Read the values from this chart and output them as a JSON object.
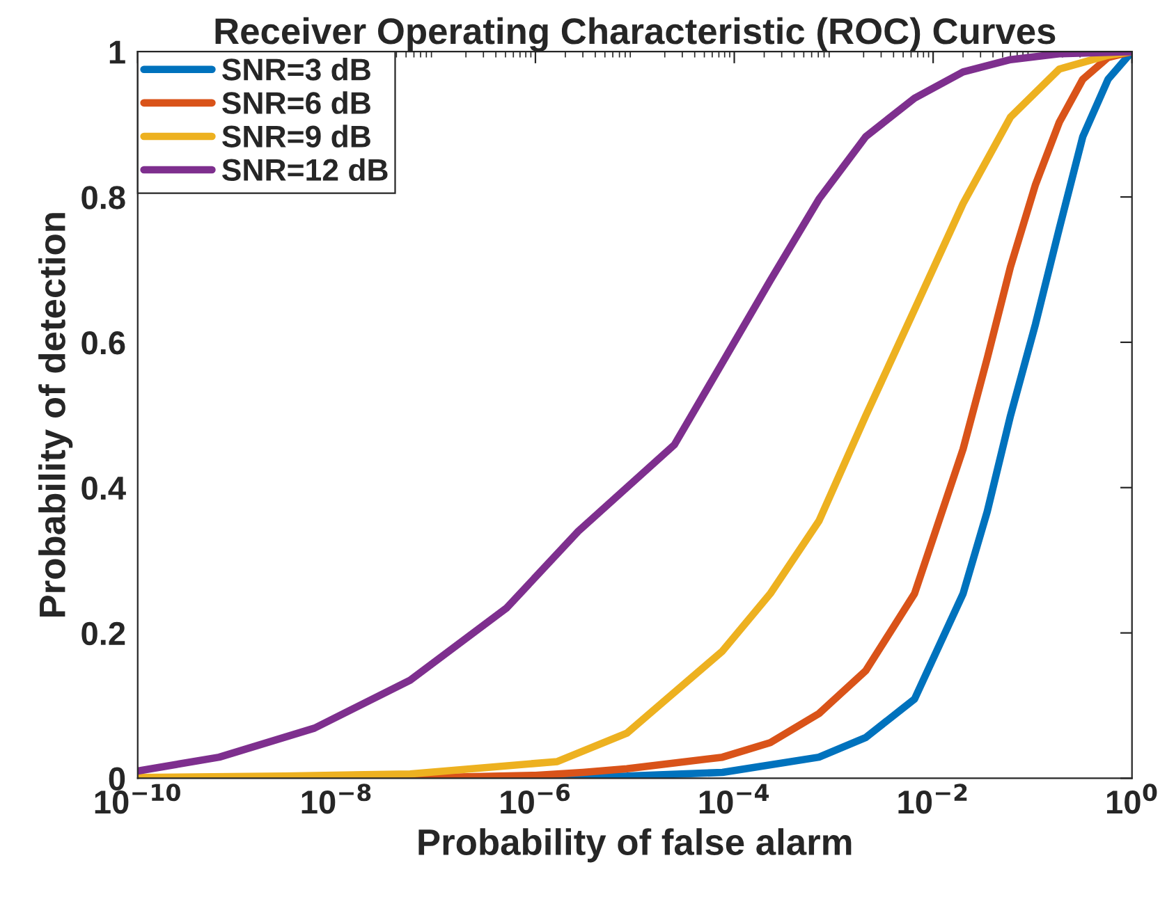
{
  "chart_data": {
    "type": "line",
    "title": "Receiver Operating Characteristic (ROC) Curves",
    "xlabel": "Probability of false alarm",
    "ylabel": "Probability of detection",
    "log": "x",
    "xlim": [
      1e-10,
      1
    ],
    "ylim": [
      0,
      1
    ],
    "xticks": [
      {
        "value": 1e-10,
        "label": "10$^{−10}$"
      },
      {
        "value": 1e-08,
        "label": "10$^{−8}$"
      },
      {
        "value": 1e-06,
        "label": "10$^{−6}$"
      },
      {
        "value": 0.0001,
        "label": "10$^{−4}$"
      },
      {
        "value": 0.01,
        "label": "10$^{−2}$"
      },
      {
        "value": 1,
        "label": "10$^{0}$"
      }
    ],
    "yticks": [
      0,
      0.2,
      0.4,
      0.6,
      0.8,
      1
    ],
    "grid": false,
    "legend": "top left",
    "marker": "none",
    "line_style": "solid",
    "series": [
      {
        "name": "SNR=3 dB",
        "color": "#0072bd",
        "x": [
          1e-10,
          1e-07,
          1e-06,
          8.3e-06,
          7.6e-05,
          0.00071,
          0.0021,
          0.0065,
          0.02,
          0.035,
          0.06,
          0.107,
          0.186,
          0.32,
          0.575,
          1
        ],
        "values": [
          0,
          0,
          null,
          0.003,
          0.008,
          0.029,
          0.056,
          0.109,
          0.254,
          0.367,
          0.499,
          0.625,
          0.757,
          0.883,
          0.962,
          1
        ]
      },
      {
        "name": "SNR=6 dB",
        "color": "#d95319",
        "x": [
          1e-10,
          1e-07,
          1e-06,
          3e-06,
          8.3e-06,
          7.6e-05,
          0.00023,
          0.00071,
          0.0021,
          0.0065,
          0.02,
          0.035,
          0.06,
          0.107,
          0.186,
          0.32,
          0.575,
          1
        ],
        "values": [
          0,
          0.001,
          0.004,
          0.008,
          0.013,
          0.029,
          0.049,
          0.089,
          0.148,
          0.254,
          0.453,
          0.578,
          0.704,
          0.817,
          0.903,
          0.962,
          0.992,
          1
        ]
      },
      {
        "name": "SNR=9 dB",
        "color": "#edb120",
        "x": [
          1e-10,
          3e-09,
          5.5e-08,
          1.66e-06,
          8.3e-06,
          7.6e-05,
          0.00023,
          0.00071,
          0.0021,
          0.0065,
          0.02,
          0.06,
          0.186,
          0.575,
          1
        ],
        "values": [
          0.001,
          0.003,
          0.006,
          0.023,
          0.062,
          0.175,
          0.254,
          0.354,
          0.499,
          0.645,
          0.791,
          0.91,
          0.976,
          0.995,
          1
        ]
      },
      {
        "name": "SNR=12 dB",
        "color": "#7e2f8e",
        "x": [
          1e-10,
          6.6e-10,
          6e-09,
          5.5e-08,
          5.1e-07,
          2.7e-06,
          2.5e-05,
          7.6e-05,
          0.00023,
          0.00071,
          0.0021,
          0.0065,
          0.02,
          0.06,
          0.186,
          1
        ],
        "values": [
          0.01,
          0.029,
          0.069,
          0.135,
          0.234,
          0.34,
          0.459,
          0.572,
          0.685,
          0.797,
          0.883,
          0.936,
          0.972,
          0.989,
          0.997,
          1
        ]
      }
    ]
  }
}
